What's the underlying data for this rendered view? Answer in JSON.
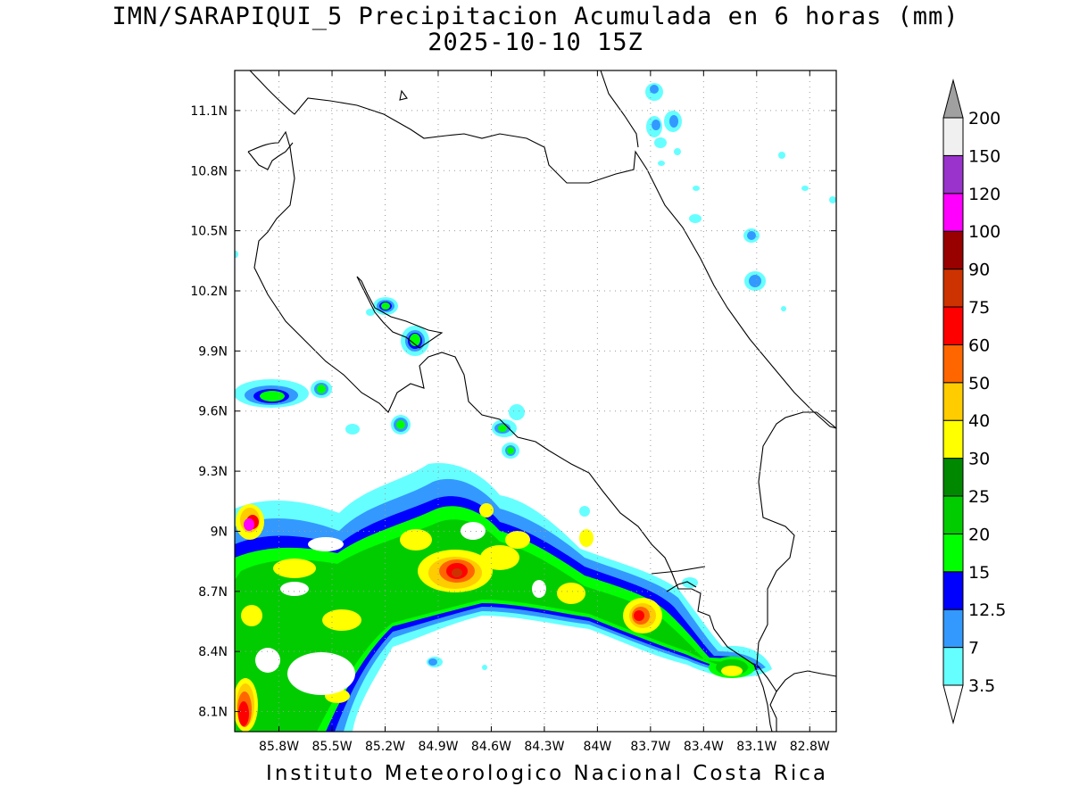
{
  "title": {
    "line1": "IMN/SARAPIQUI_5 Precipitacion Acumulada en 6 horas (mm)",
    "line2": "2025-10-10 15Z"
  },
  "footer": "Instituto Meteorologico Nacional Costa Rica",
  "map": {
    "lon_range": [
      -86.05,
      -82.65
    ],
    "lat_range": [
      8.0,
      11.3
    ],
    "lon_ticks": [
      -85.8,
      -85.5,
      -85.2,
      -84.9,
      -84.6,
      -84.3,
      -84.0,
      -83.7,
      -83.4,
      -83.1,
      -82.8
    ],
    "lon_tick_labels": [
      "85.8W",
      "85.5W",
      "85.2W",
      "84.9W",
      "84.6W",
      "84.3W",
      "84W",
      "83.7W",
      "83.4W",
      "83.1W",
      "82.8W"
    ],
    "lat_ticks": [
      8.1,
      8.4,
      8.7,
      9.0,
      9.3,
      9.6,
      9.9,
      10.2,
      10.5,
      10.8,
      11.1
    ],
    "lat_tick_labels": [
      "8.1N",
      "8.4N",
      "8.7N",
      "9N",
      "9.3N",
      "9.6N",
      "9.9N",
      "10.2N",
      "10.5N",
      "10.8N",
      "11.1N"
    ],
    "grid": "dotted"
  },
  "colorbar": {
    "labels": [
      "3.5",
      "7",
      "12.5",
      "15",
      "20",
      "25",
      "30",
      "40",
      "50",
      "60",
      "75",
      "90",
      "100",
      "120",
      "150",
      "200"
    ],
    "colors": [
      "#66ffff",
      "#3399ff",
      "#0000ff",
      "#00ff00",
      "#00cc00",
      "#008800",
      "#ffff00",
      "#ffcc00",
      "#ff6600",
      "#ff0000",
      "#cc3300",
      "#990000",
      "#ff00ff",
      "#9933cc",
      "#f0f0f0"
    ],
    "low_extension_color": "#ffffff",
    "high_extension_color": "#a0a0a0"
  }
}
